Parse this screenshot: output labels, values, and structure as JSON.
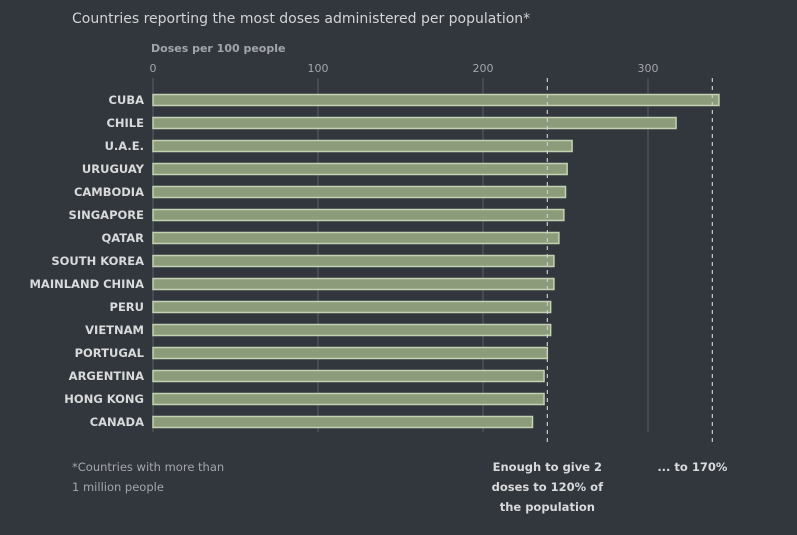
{
  "chart_data": {
    "type": "bar",
    "orientation": "horizontal",
    "title": "Countries reporting the most doses administered per population*",
    "xlabel": "Doses per 100 people",
    "xlim": [
      0,
      340
    ],
    "ticks": [
      0,
      100,
      200,
      300
    ],
    "grid": false,
    "categories": [
      "CUBA",
      "CHILE",
      "U.A.E.",
      "URUGUAY",
      "CAMBODIA",
      "SINGAPORE",
      "QATAR",
      "SOUTH KOREA",
      "MAINLAND CHINA",
      "PERU",
      "VIETNAM",
      "PORTUGAL",
      "ARGENTINA",
      "HONG KONG",
      "CANADA"
    ],
    "values": [
      343,
      317,
      254,
      251,
      250,
      249,
      246,
      243,
      243,
      241,
      241,
      239,
      237,
      237,
      230
    ],
    "reference_lines": [
      {
        "value": 239,
        "label_lines": [
          "Enough to give 2",
          "doses to 120% of",
          "the population"
        ]
      },
      {
        "value": 339,
        "label_lines": [
          "... to 170%"
        ]
      }
    ],
    "footnote_lines": [
      "*Countries with more than",
      "1 million people"
    ],
    "colors": {
      "bar": "#8c9c7a",
      "bar_outline": "#c4d1b2",
      "background": "#32363d"
    }
  }
}
